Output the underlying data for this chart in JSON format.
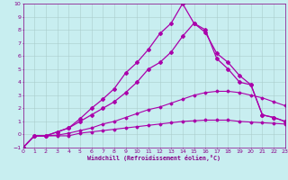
{
  "background_color": "#c8eef0",
  "grid_color": "#aacccc",
  "line_color": "#aa00aa",
  "text_color": "#880088",
  "xlabel": "Windchill (Refroidissement éolien,°C)",
  "xlim": [
    0,
    23
  ],
  "ylim": [
    -1,
    10
  ],
  "xticks": [
    0,
    1,
    2,
    3,
    4,
    5,
    6,
    7,
    8,
    9,
    10,
    11,
    12,
    13,
    14,
    15,
    16,
    17,
    18,
    19,
    20,
    21,
    22,
    23
  ],
  "yticks": [
    -1,
    0,
    1,
    2,
    3,
    4,
    5,
    6,
    7,
    8,
    9,
    10
  ],
  "series": [
    {
      "x": [
        0,
        1,
        2,
        3,
        4,
        5,
        6,
        7,
        8,
        9,
        10,
        11,
        12,
        13,
        14,
        15,
        16,
        17,
        18,
        19,
        20,
        21,
        22,
        23
      ],
      "y": [
        -1,
        -0.1,
        -0.1,
        -0.1,
        -0.1,
        0.1,
        0.2,
        0.3,
        0.4,
        0.5,
        0.6,
        0.7,
        0.8,
        0.9,
        1.0,
        1.05,
        1.1,
        1.1,
        1.1,
        1.0,
        0.95,
        0.9,
        0.85,
        0.8
      ],
      "marker": "D",
      "markersize": 1.5,
      "linewidth": 0.8
    },
    {
      "x": [
        0,
        1,
        2,
        3,
        4,
        5,
        6,
        7,
        8,
        9,
        10,
        11,
        12,
        13,
        14,
        15,
        16,
        17,
        18,
        19,
        20,
        21,
        22,
        23
      ],
      "y": [
        -1,
        -0.1,
        -0.1,
        -0.05,
        0.1,
        0.3,
        0.5,
        0.8,
        1.0,
        1.3,
        1.6,
        1.9,
        2.1,
        2.4,
        2.7,
        3.0,
        3.2,
        3.3,
        3.3,
        3.2,
        3.0,
        2.8,
        2.5,
        2.2
      ],
      "marker": "D",
      "markersize": 1.5,
      "linewidth": 0.8
    },
    {
      "x": [
        0,
        1,
        2,
        3,
        4,
        5,
        6,
        7,
        8,
        9,
        10,
        11,
        12,
        13,
        14,
        15,
        16,
        17,
        18,
        19,
        20,
        21,
        22,
        23
      ],
      "y": [
        -1,
        -0.1,
        -0.1,
        0.2,
        0.5,
        1.0,
        1.5,
        2.0,
        2.5,
        3.2,
        4.0,
        5.0,
        5.5,
        6.3,
        7.5,
        8.5,
        8.0,
        5.8,
        5.0,
        4.0,
        3.8,
        1.5,
        1.3,
        1.0
      ],
      "marker": "D",
      "markersize": 2.0,
      "linewidth": 0.9
    },
    {
      "x": [
        0,
        1,
        2,
        3,
        4,
        5,
        6,
        7,
        8,
        9,
        10,
        11,
        12,
        13,
        14,
        15,
        16,
        17,
        18,
        19,
        20,
        21,
        22,
        23
      ],
      "y": [
        -1,
        -0.1,
        -0.1,
        0.2,
        0.5,
        1.2,
        2.0,
        2.7,
        3.5,
        4.7,
        5.5,
        6.5,
        7.7,
        8.5,
        10.0,
        8.5,
        7.8,
        6.2,
        5.5,
        4.5,
        3.8,
        1.5,
        1.3,
        1.0
      ],
      "marker": "D",
      "markersize": 2.0,
      "linewidth": 0.9
    }
  ]
}
